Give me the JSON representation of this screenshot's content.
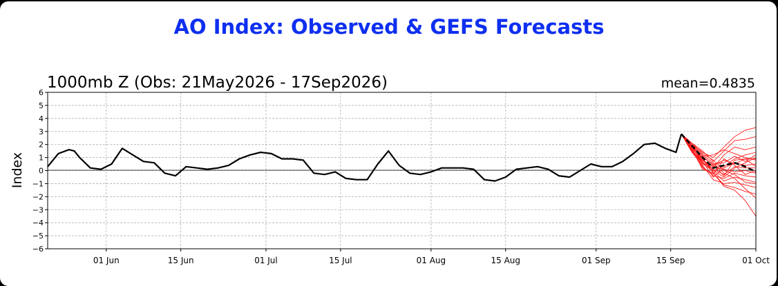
{
  "page": {
    "title": "AO Index: Observed & GEFS Forecasts"
  },
  "chart_data": {
    "type": "line",
    "plot_title": "1000mb Z (Obs: 21May2026 - 17Sep2026)",
    "mean_label": "mean=0.4835",
    "ylabel": "Index",
    "xlabel": "",
    "ylim": [
      -6,
      6
    ],
    "yticks": [
      -6,
      -5,
      -4,
      -3,
      -2,
      -1,
      0,
      1,
      2,
      3,
      4,
      5,
      6
    ],
    "ytick_labels": [
      "−6",
      "−5",
      "−4",
      "−3",
      "−2",
      "−1",
      "0",
      "1",
      "2",
      "3",
      "4",
      "5",
      "6"
    ],
    "xlim": [
      "2026-05-21",
      "2026-10-01"
    ],
    "xticks": [
      {
        "date": "2026-06-01",
        "label": "01 Jun"
      },
      {
        "date": "2026-06-15",
        "label": "15 Jun"
      },
      {
        "date": "2026-07-01",
        "label": "01 Jul"
      },
      {
        "date": "2026-07-15",
        "label": "15 Jul"
      },
      {
        "date": "2026-08-01",
        "label": "01 Aug"
      },
      {
        "date": "2026-08-15",
        "label": "15 Aug"
      },
      {
        "date": "2026-09-01",
        "label": "01 Sep"
      },
      {
        "date": "2026-09-15",
        "label": "15 Sep"
      },
      {
        "date": "2026-10-01",
        "label": "01 Oct"
      }
    ],
    "grid": true,
    "zero_line": true,
    "colors": {
      "observed": "#000000",
      "members": "#ff1a1a",
      "ensemble_mean": "#000000",
      "title": "#0e2ff0"
    },
    "series": [
      {
        "style": "solid-black",
        "x": [
          "2026-05-21",
          "2026-05-23",
          "2026-05-25",
          "2026-05-26",
          "2026-05-27",
          "2026-05-29",
          "2026-05-31",
          "2026-06-02",
          "2026-06-04",
          "2026-06-06",
          "2026-06-08",
          "2026-06-10",
          "2026-06-12",
          "2026-06-14",
          "2026-06-16",
          "2026-06-18",
          "2026-06-20",
          "2026-06-22",
          "2026-06-24",
          "2026-06-26",
          "2026-06-28",
          "2026-06-30",
          "2026-07-02",
          "2026-07-04",
          "2026-07-06",
          "2026-07-08",
          "2026-07-10",
          "2026-07-12",
          "2026-07-14",
          "2026-07-16",
          "2026-07-18",
          "2026-07-20",
          "2026-07-22",
          "2026-07-24",
          "2026-07-26",
          "2026-07-28",
          "2026-07-30",
          "2026-08-01",
          "2026-08-03",
          "2026-08-05",
          "2026-08-07",
          "2026-08-09",
          "2026-08-11",
          "2026-08-13",
          "2026-08-15",
          "2026-08-17",
          "2026-08-19",
          "2026-08-21",
          "2026-08-23",
          "2026-08-25",
          "2026-08-27",
          "2026-08-29",
          "2026-08-31",
          "2026-09-02",
          "2026-09-04",
          "2026-09-06",
          "2026-09-08",
          "2026-09-10",
          "2026-09-12",
          "2026-09-14",
          "2026-09-16",
          "2026-09-17"
        ],
        "y": [
          0.3,
          1.3,
          1.6,
          1.5,
          1.0,
          0.2,
          0.1,
          0.5,
          1.7,
          1.2,
          0.7,
          0.6,
          -0.2,
          -0.4,
          0.3,
          0.2,
          0.1,
          0.2,
          0.4,
          0.9,
          1.2,
          1.4,
          1.3,
          0.9,
          0.9,
          0.8,
          -0.2,
          -0.3,
          -0.1,
          -0.6,
          -0.7,
          -0.7,
          0.5,
          1.5,
          0.4,
          -0.2,
          -0.3,
          -0.1,
          0.2,
          0.2,
          0.2,
          0.1,
          -0.7,
          -0.8,
          -0.5,
          0.1,
          0.2,
          0.3,
          0.1,
          -0.4,
          -0.5,
          0.0,
          0.5,
          0.3,
          0.3,
          0.7,
          1.3,
          2.0,
          2.1,
          1.7,
          1.4,
          2.8
        ]
      },
      {
        "style": "dashed-black",
        "x": [
          "2026-09-17",
          "2026-09-19",
          "2026-09-21",
          "2026-09-23",
          "2026-09-25",
          "2026-09-27",
          "2026-09-29",
          "2026-10-01"
        ],
        "y": [
          2.8,
          1.9,
          1.0,
          0.2,
          0.4,
          0.6,
          0.3,
          -0.1
        ]
      },
      {
        "style": "thin-red",
        "members": [
          [
            2.8,
            2.0,
            1.4,
            1.0,
            1.8,
            2.6,
            3.1,
            3.3
          ],
          [
            2.8,
            2.1,
            1.5,
            0.7,
            1.5,
            2.3,
            2.4,
            2.6
          ],
          [
            2.8,
            1.8,
            0.6,
            0.2,
            1.2,
            1.8,
            1.6,
            1.8
          ],
          [
            2.8,
            1.7,
            0.9,
            0.0,
            0.3,
            0.9,
            1.2,
            1.4
          ],
          [
            2.8,
            1.9,
            1.1,
            0.4,
            0.8,
            0.5,
            0.9,
            0.9
          ],
          [
            2.8,
            1.8,
            0.7,
            -0.5,
            0.2,
            0.6,
            0.4,
            0.5
          ],
          [
            2.8,
            1.6,
            0.5,
            0.1,
            -0.3,
            0.3,
            0.2,
            0.2
          ],
          [
            2.8,
            1.7,
            0.8,
            0.3,
            0.1,
            -0.1,
            0.0,
            -0.2
          ],
          [
            2.8,
            1.5,
            0.3,
            -0.4,
            -0.6,
            -0.2,
            -0.4,
            -0.5
          ],
          [
            2.8,
            1.6,
            0.6,
            -0.1,
            -0.8,
            -0.5,
            -0.7,
            -0.9
          ],
          [
            2.8,
            1.4,
            0.4,
            -0.7,
            -1.0,
            -0.9,
            -1.1,
            -1.3
          ],
          [
            2.8,
            1.9,
            0.9,
            -0.2,
            -1.2,
            -1.5,
            -2.3,
            -3.5
          ],
          [
            2.8,
            2.0,
            1.2,
            0.6,
            -0.2,
            -0.6,
            -1.4,
            -2.1
          ],
          [
            2.8,
            1.8,
            1.0,
            0.5,
            0.6,
            1.1,
            0.7,
            1.2
          ],
          [
            2.8,
            1.7,
            0.2,
            -0.3,
            0.9,
            0.4,
            -0.3,
            0.0
          ],
          [
            2.8,
            1.5,
            0.5,
            0.4,
            -0.4,
            0.8,
            0.9,
            0.3
          ],
          [
            2.8,
            2.1,
            1.3,
            0.8,
            0.0,
            -0.3,
            -0.9,
            -1.0
          ],
          [
            2.8,
            1.6,
            0.1,
            -0.2,
            -1.1,
            -1.3,
            -1.6,
            -1.8
          ],
          [
            2.8,
            1.9,
            1.1,
            1.2,
            1.6,
            1.3,
            1.0,
            0.8
          ],
          [
            2.8,
            1.4,
            0.8,
            0.0,
            -0.5,
            0.2,
            0.6,
            1.0
          ]
        ]
      }
    ]
  }
}
